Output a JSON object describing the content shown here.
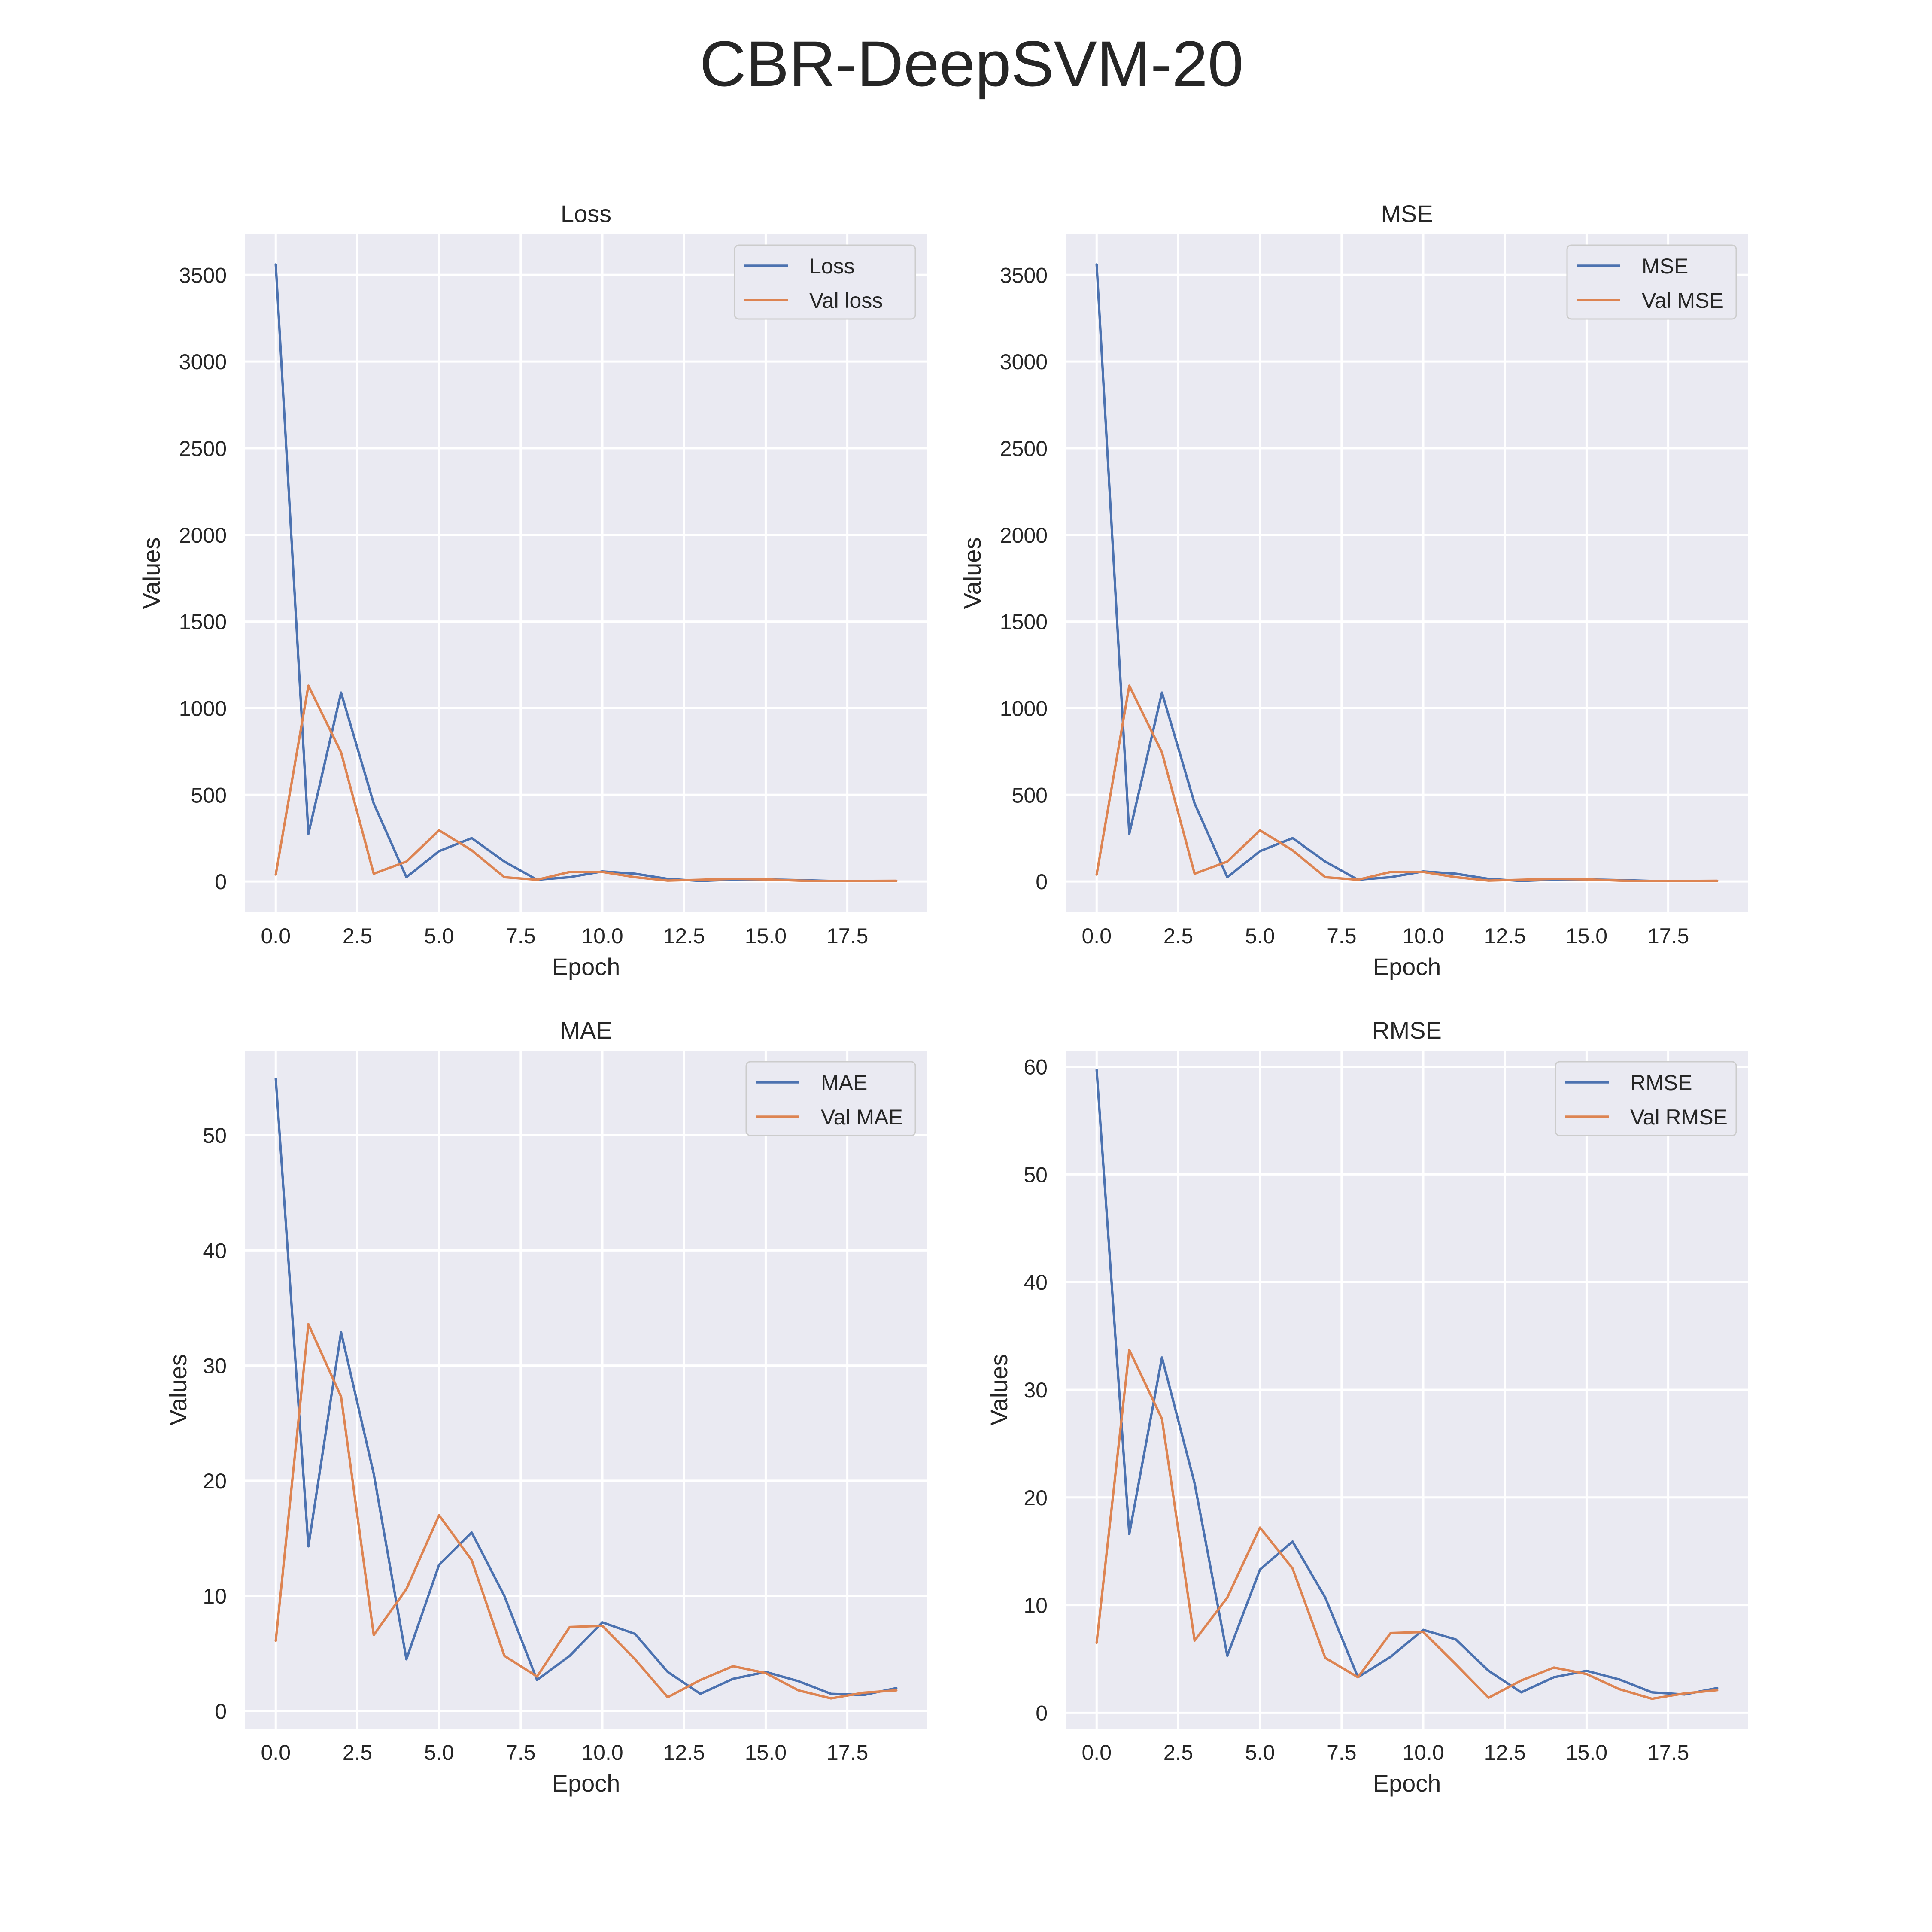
{
  "figure": {
    "title": "CBR-DeepSVM-20"
  },
  "colors": {
    "series_1": "#4c72b0",
    "series_2": "#dd8452",
    "background": "#eaeaf2",
    "grid": "#ffffff"
  },
  "chart_data": [
    {
      "type": "line",
      "title": "Loss",
      "xlabel": "Epoch",
      "ylabel": "Values",
      "xlim": [
        -0.95,
        19.95
      ],
      "ylim": [
        -178,
        3736
      ],
      "xticks": [
        0.0,
        2.5,
        5.0,
        7.5,
        10.0,
        12.5,
        15.0,
        17.5
      ],
      "xtick_labels": [
        "0.0",
        "2.5",
        "5.0",
        "7.5",
        "10.0",
        "12.5",
        "15.0",
        "17.5"
      ],
      "yticks": [
        0,
        500,
        1000,
        1500,
        2000,
        2500,
        3000,
        3500
      ],
      "ytick_labels": [
        "0",
        "500",
        "1000",
        "1500",
        "2000",
        "2500",
        "3000",
        "3500"
      ],
      "grid": true,
      "legend_position": "upper right",
      "x": [
        0,
        1,
        2,
        3,
        4,
        5,
        6,
        7,
        8,
        9,
        10,
        11,
        12,
        13,
        14,
        15,
        16,
        17,
        18,
        19
      ],
      "series": [
        {
          "name": "Loss",
          "values": [
            3560,
            275,
            1090,
            450,
            25,
            175,
            250,
            115,
            10,
            25,
            58,
            45,
            15,
            3,
            10,
            12,
            8,
            3,
            3,
            3
          ]
        },
        {
          "name": "Val loss",
          "values": [
            40,
            1130,
            745,
            45,
            115,
            295,
            180,
            25,
            10,
            55,
            55,
            25,
            5,
            10,
            15,
            12,
            5,
            2,
            3,
            4
          ]
        }
      ]
    },
    {
      "type": "line",
      "title": "MSE",
      "xlabel": "Epoch",
      "ylabel": "Values",
      "xlim": [
        -0.95,
        19.95
      ],
      "ylim": [
        -178,
        3736
      ],
      "xticks": [
        0.0,
        2.5,
        5.0,
        7.5,
        10.0,
        12.5,
        15.0,
        17.5
      ],
      "xtick_labels": [
        "0.0",
        "2.5",
        "5.0",
        "7.5",
        "10.0",
        "12.5",
        "15.0",
        "17.5"
      ],
      "yticks": [
        0,
        500,
        1000,
        1500,
        2000,
        2500,
        3000,
        3500
      ],
      "ytick_labels": [
        "0",
        "500",
        "1000",
        "1500",
        "2000",
        "2500",
        "3000",
        "3500"
      ],
      "grid": true,
      "legend_position": "upper right",
      "x": [
        0,
        1,
        2,
        3,
        4,
        5,
        6,
        7,
        8,
        9,
        10,
        11,
        12,
        13,
        14,
        15,
        16,
        17,
        18,
        19
      ],
      "series": [
        {
          "name": "MSE",
          "values": [
            3560,
            275,
            1090,
            450,
            25,
            175,
            250,
            115,
            10,
            25,
            58,
            45,
            15,
            3,
            10,
            12,
            8,
            3,
            3,
            3
          ]
        },
        {
          "name": "Val MSE",
          "values": [
            40,
            1130,
            745,
            45,
            115,
            295,
            180,
            25,
            10,
            55,
            55,
            25,
            5,
            10,
            15,
            12,
            5,
            2,
            3,
            4
          ]
        }
      ]
    },
    {
      "type": "line",
      "title": "MAE",
      "xlabel": "Epoch",
      "ylabel": "Values",
      "xlim": [
        -0.95,
        19.95
      ],
      "ylim": [
        -1.55,
        57.35
      ],
      "xticks": [
        0.0,
        2.5,
        5.0,
        7.5,
        10.0,
        12.5,
        15.0,
        17.5
      ],
      "xtick_labels": [
        "0.0",
        "2.5",
        "5.0",
        "7.5",
        "10.0",
        "12.5",
        "15.0",
        "17.5"
      ],
      "yticks": [
        0,
        10,
        20,
        30,
        40,
        50
      ],
      "ytick_labels": [
        "0",
        "10",
        "20",
        "30",
        "40",
        "50"
      ],
      "grid": true,
      "legend_position": "upper right",
      "x": [
        0,
        1,
        2,
        3,
        4,
        5,
        6,
        7,
        8,
        9,
        10,
        11,
        12,
        13,
        14,
        15,
        16,
        17,
        18,
        19
      ],
      "series": [
        {
          "name": "MAE",
          "values": [
            54.9,
            14.3,
            32.9,
            20.6,
            4.5,
            12.7,
            15.5,
            10.0,
            2.7,
            4.8,
            7.7,
            6.7,
            3.4,
            1.5,
            2.8,
            3.4,
            2.6,
            1.5,
            1.4,
            2.0
          ]
        },
        {
          "name": "Val MAE",
          "values": [
            6.1,
            33.6,
            27.3,
            6.6,
            10.6,
            17.0,
            13.1,
            4.8,
            3.0,
            7.3,
            7.4,
            4.5,
            1.2,
            2.7,
            3.9,
            3.3,
            1.8,
            1.1,
            1.6,
            1.8
          ]
        }
      ]
    },
    {
      "type": "line",
      "title": "RMSE",
      "xlabel": "Epoch",
      "ylabel": "Values",
      "xlim": [
        -0.95,
        19.95
      ],
      "ylim": [
        -1.5,
        61.5
      ],
      "xticks": [
        0.0,
        2.5,
        5.0,
        7.5,
        10.0,
        12.5,
        15.0,
        17.5
      ],
      "xtick_labels": [
        "0.0",
        "2.5",
        "5.0",
        "7.5",
        "10.0",
        "12.5",
        "15.0",
        "17.5"
      ],
      "yticks": [
        0,
        10,
        20,
        30,
        40,
        50,
        60
      ],
      "ytick_labels": [
        "0",
        "10",
        "20",
        "30",
        "40",
        "50",
        "60"
      ],
      "grid": true,
      "legend_position": "upper right",
      "x": [
        0,
        1,
        2,
        3,
        4,
        5,
        6,
        7,
        8,
        9,
        10,
        11,
        12,
        13,
        14,
        15,
        16,
        17,
        18,
        19
      ],
      "series": [
        {
          "name": "RMSE",
          "values": [
            59.7,
            16.6,
            33.0,
            21.3,
            5.3,
            13.3,
            15.9,
            10.7,
            3.3,
            5.2,
            7.7,
            6.8,
            3.9,
            1.9,
            3.3,
            3.9,
            3.1,
            1.9,
            1.7,
            2.3
          ]
        },
        {
          "name": "Val RMSE",
          "values": [
            6.5,
            33.7,
            27.3,
            6.7,
            10.7,
            17.2,
            13.4,
            5.1,
            3.3,
            7.4,
            7.5,
            4.5,
            1.4,
            3.0,
            4.2,
            3.6,
            2.2,
            1.3,
            1.8,
            2.1
          ]
        }
      ]
    }
  ]
}
